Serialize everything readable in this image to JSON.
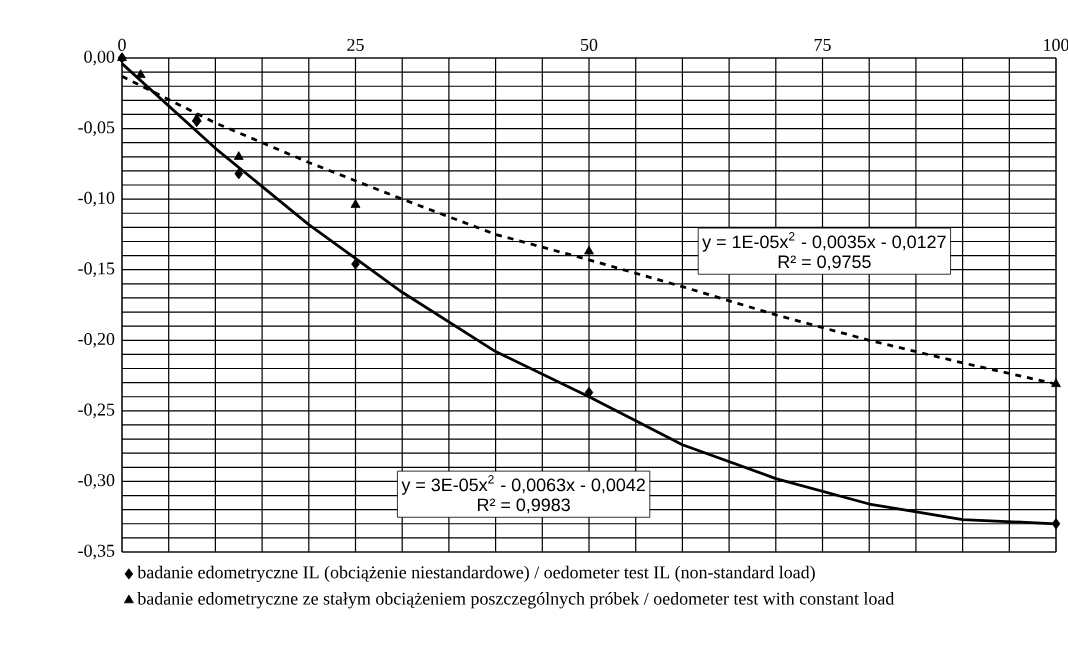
{
  "chart_data": {
    "type": "scatter",
    "xlim": [
      0,
      100
    ],
    "ylim": [
      -0.35,
      0
    ],
    "xticks": [
      0,
      {
        "value": 5,
        "label": null
      },
      {
        "value": 10,
        "label": null
      },
      {
        "value": 15,
        "label": null
      },
      {
        "value": 20,
        "label": null
      },
      25,
      {
        "value": 30,
        "label": null
      },
      {
        "value": 35,
        "label": null
      },
      {
        "value": 40,
        "label": null
      },
      {
        "value": 45,
        "label": null
      },
      50,
      {
        "value": 55,
        "label": null
      },
      {
        "value": 60,
        "label": null
      },
      {
        "value": 65,
        "label": null
      },
      {
        "value": 70,
        "label": null
      },
      75,
      {
        "value": 80,
        "label": null
      },
      {
        "value": 85,
        "label": null
      },
      {
        "value": 90,
        "label": null
      },
      {
        "value": 95,
        "label": null
      },
      100
    ],
    "yticks": [
      {
        "value": 0,
        "label": "0,00"
      },
      {
        "value": -0.01,
        "label": null
      },
      {
        "value": -0.02,
        "label": null
      },
      {
        "value": -0.03,
        "label": null
      },
      {
        "value": -0.04,
        "label": null
      },
      {
        "value": -0.05,
        "label": "-0,05"
      },
      {
        "value": -0.06,
        "label": null
      },
      {
        "value": -0.07,
        "label": null
      },
      {
        "value": -0.08,
        "label": null
      },
      {
        "value": -0.09,
        "label": null
      },
      {
        "value": -0.1,
        "label": "-0,10"
      },
      {
        "value": -0.11,
        "label": null
      },
      {
        "value": -0.12,
        "label": null
      },
      {
        "value": -0.13,
        "label": null
      },
      {
        "value": -0.14,
        "label": null
      },
      {
        "value": -0.15,
        "label": "-0,15"
      },
      {
        "value": -0.16,
        "label": null
      },
      {
        "value": -0.17,
        "label": null
      },
      {
        "value": -0.18,
        "label": null
      },
      {
        "value": -0.19,
        "label": null
      },
      {
        "value": -0.2,
        "label": "-0,20"
      },
      {
        "value": -0.21,
        "label": null
      },
      {
        "value": -0.22,
        "label": null
      },
      {
        "value": -0.23,
        "label": null
      },
      {
        "value": -0.24,
        "label": null
      },
      {
        "value": -0.25,
        "label": "-0,25"
      },
      {
        "value": -0.26,
        "label": null
      },
      {
        "value": -0.27,
        "label": null
      },
      {
        "value": -0.28,
        "label": null
      },
      {
        "value": -0.29,
        "label": null
      },
      {
        "value": -0.3,
        "label": "-0,30"
      },
      {
        "value": -0.31,
        "label": null
      },
      {
        "value": -0.32,
        "label": null
      },
      {
        "value": -0.33,
        "label": null
      },
      {
        "value": -0.34,
        "label": null
      },
      {
        "value": -0.35,
        "label": "-0,35"
      }
    ],
    "grid": true,
    "legend": "bottom",
    "series": [
      {
        "name": "badanie edometryczne IL (obciążenie niestandardowe) / oedometer test IL (non-standard load)",
        "marker": "diamond",
        "color": "#000000",
        "x": [
          0,
          2,
          8,
          12.5,
          25,
          50,
          100
        ],
        "values": [
          0,
          null,
          -0.045,
          -0.082,
          -0.146,
          -0.237,
          -0.33
        ]
      },
      {
        "name": "badanie edometryczne ze stałym obciążeniem poszczególnych próbek / oedometer test with constant load",
        "marker": "triangle",
        "color": "#000000",
        "x": [
          0,
          2,
          8,
          12.5,
          25,
          50,
          100
        ],
        "values": [
          0,
          -0.012,
          -0.043,
          -0.07,
          -0.104,
          -0.137,
          -0.231
        ]
      },
      {
        "type": "line",
        "marker": "none",
        "line_style": "solid",
        "color": "#000000",
        "x": [
          0,
          10,
          20,
          30,
          40,
          50,
          60,
          70,
          80,
          90,
          100
        ],
        "values": [
          -0.004,
          -0.064,
          -0.118,
          -0.166,
          -0.208,
          -0.24,
          -0.274,
          -0.298,
          -0.316,
          -0.327,
          -0.33
        ]
      },
      {
        "type": "line",
        "marker": "none",
        "line_style": "dashed",
        "color": "#000000",
        "x": [
          0,
          10,
          20,
          30,
          40,
          50,
          60,
          70,
          80,
          90,
          100
        ],
        "values": [
          -0.013,
          -0.046,
          -0.074,
          -0.1,
          -0.125,
          -0.143,
          -0.162,
          -0.182,
          -0.2,
          -0.216,
          -0.231
        ]
      }
    ],
    "annotations": [
      "y = 1E-05x$^{2}$ - 0,0035x - 0,0127",
      "R² = 0,9755",
      "y = 3E-05x$^{2}$ - 0,0063x - 0,0042",
      "R² = 0,9983"
    ]
  }
}
